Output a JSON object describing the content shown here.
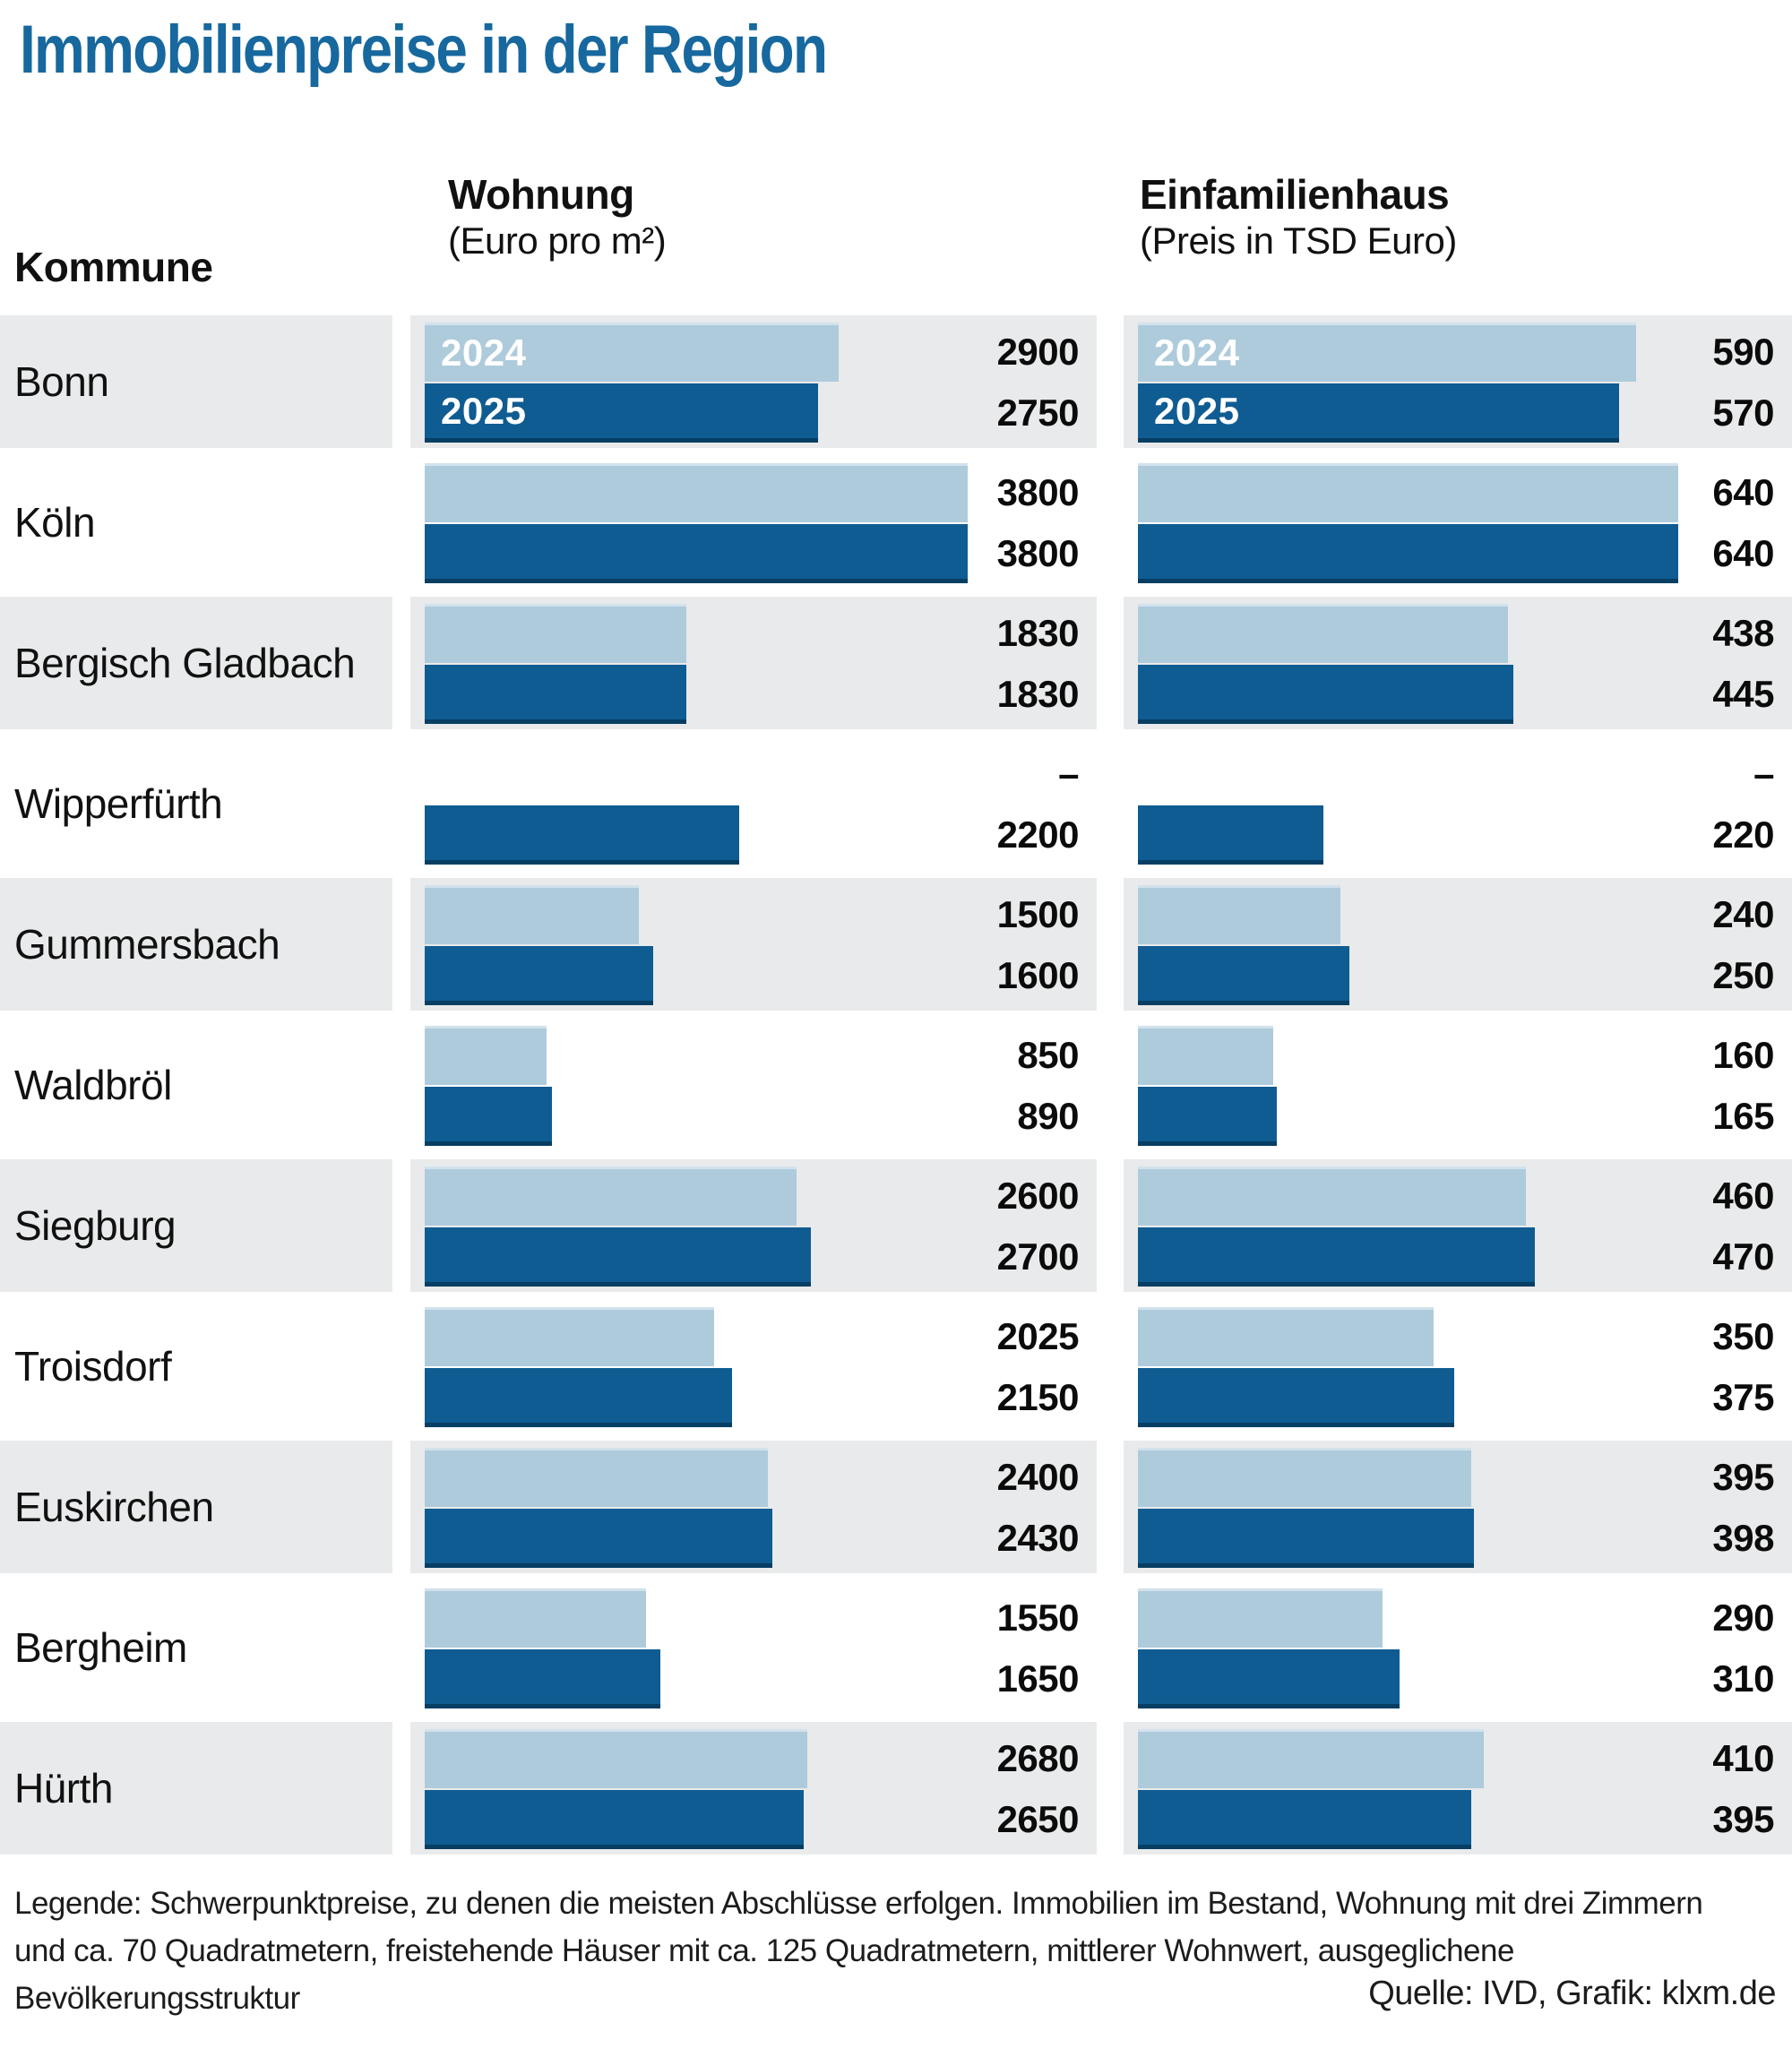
{
  "title": "Immobilienpreise in der Region",
  "headers": {
    "kommune": "Kommune",
    "wohnung_title": "Wohnung",
    "wohnung_sub": "(Euro pro m²)",
    "haus_title": "Einfamilienhaus",
    "haus_sub": "(Preis in TSD Euro)"
  },
  "year_labels": [
    "2024",
    "2025"
  ],
  "colors": {
    "title_blue": "#17689e",
    "bar_2024_light_blue": "#aecbdc",
    "bar_2025_dark_blue": "#0f5c92",
    "row_alt_gray": "#e9eaeb"
  },
  "chart_data": {
    "type": "bar",
    "orientation": "horizontal",
    "title": "Immobilienpreise in der Region",
    "categories": [
      "Bonn",
      "Köln",
      "Bergisch Gladbach",
      "Wipperfürth",
      "Gummersbach",
      "Waldbröl",
      "Siegburg",
      "Troisdorf",
      "Euskirchen",
      "Bergheim",
      "Hürth"
    ],
    "series": [
      {
        "name": "Wohnung 2024 (Euro pro m²)",
        "values": [
          2900,
          3800,
          1830,
          null,
          1500,
          850,
          2600,
          2025,
          2400,
          1550,
          2680
        ]
      },
      {
        "name": "Wohnung 2025 (Euro pro m²)",
        "values": [
          2750,
          3800,
          1830,
          2200,
          1600,
          890,
          2700,
          2150,
          2430,
          1650,
          2650
        ]
      },
      {
        "name": "Einfamilienhaus 2024 (TSD Euro)",
        "values": [
          590,
          640,
          438,
          null,
          240,
          160,
          460,
          350,
          395,
          290,
          410
        ]
      },
      {
        "name": "Einfamilienhaus 2025 (TSD Euro)",
        "values": [
          570,
          640,
          445,
          220,
          250,
          165,
          470,
          375,
          398,
          310,
          395
        ]
      }
    ],
    "null_display": "–",
    "axis": {
      "wohnung_max": 3800,
      "haus_max": 640
    },
    "legend_position": "in-bar (years labeled on first row)",
    "grid": false
  },
  "legend": "Legende: Schwerpunktpreise, zu denen die meisten Abschlüsse erfolgen. Immobilien im Bestand, Wohnung mit drei Zimmern\nund ca. 70 Quadratmetern, freistehende Häuser mit ca. 125 Quadratmetern, mittlerer Wohnwert, ausgeglichene\nBevölkerungsstruktur",
  "source": "Quelle: IVD, Grafik: klxm.de"
}
